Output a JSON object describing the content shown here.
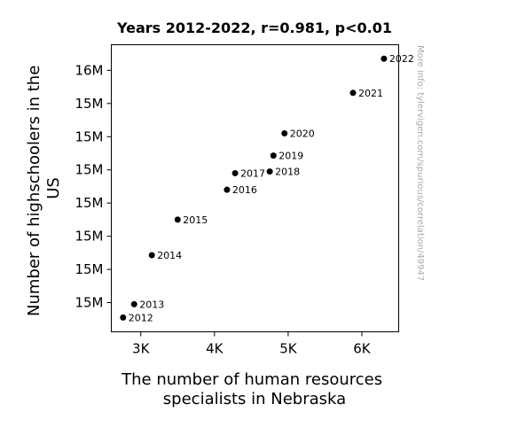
{
  "chart_data": {
    "type": "scatter",
    "title": "Years 2012-2022, r=0.981, p<0.01",
    "xlabel_lines": [
      "The number of human resources",
      "specialists in Nebraska"
    ],
    "ylabel_lines": [
      "Number of highschoolers in the",
      "US"
    ],
    "watermark": "More info: tylervigen.com/spurious/correlation/49947",
    "x_ticks": [
      {
        "value": 3000,
        "label": "3K"
      },
      {
        "value": 4000,
        "label": "4K"
      },
      {
        "value": 5000,
        "label": "5K"
      },
      {
        "value": 6000,
        "label": "6K"
      }
    ],
    "y_ticks": [
      {
        "value": 15050000,
        "label": "15M"
      },
      {
        "value": 15150000,
        "label": "15M"
      },
      {
        "value": 15250000,
        "label": "15M"
      },
      {
        "value": 15350000,
        "label": "15M"
      },
      {
        "value": 15450000,
        "label": "15M"
      },
      {
        "value": 15550000,
        "label": "15M"
      },
      {
        "value": 15650000,
        "label": "15M"
      },
      {
        "value": 15750000,
        "label": "16M"
      }
    ],
    "xlim": [
      2600,
      6500
    ],
    "ylim": [
      14962000,
      15827000
    ],
    "points": [
      {
        "label": "2012",
        "x": 2760,
        "y": 15005000
      },
      {
        "label": "2013",
        "x": 2910,
        "y": 15045000
      },
      {
        "label": "2014",
        "x": 3150,
        "y": 15193000
      },
      {
        "label": "2015",
        "x": 3500,
        "y": 15300000
      },
      {
        "label": "2016",
        "x": 4170,
        "y": 15390000
      },
      {
        "label": "2017",
        "x": 4280,
        "y": 15440000
      },
      {
        "label": "2018",
        "x": 4750,
        "y": 15445000
      },
      {
        "label": "2019",
        "x": 4800,
        "y": 15493000
      },
      {
        "label": "2020",
        "x": 4950,
        "y": 15560000
      },
      {
        "label": "2021",
        "x": 5880,
        "y": 15682000
      },
      {
        "label": "2022",
        "x": 6300,
        "y": 15785000
      }
    ],
    "grid": false,
    "marker_color": "#000000"
  }
}
